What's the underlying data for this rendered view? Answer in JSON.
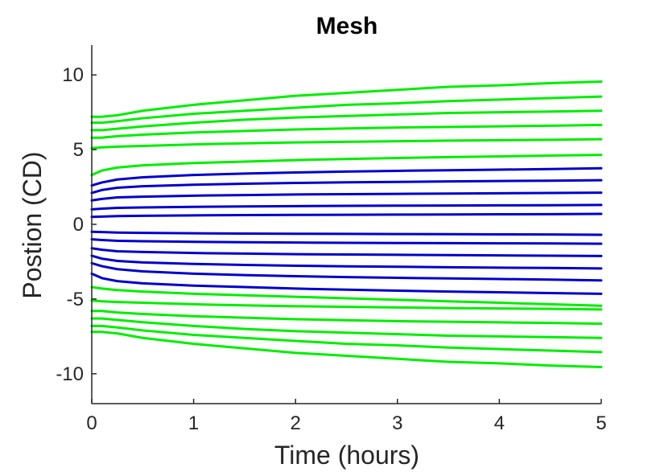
{
  "chart_data": {
    "type": "line",
    "title": "Mesh",
    "xlabel": "Time (hours)",
    "ylabel": "Postion (CD)",
    "xlim": [
      0,
      5
    ],
    "ylim": [
      -12,
      12
    ],
    "xticks": [
      0,
      1,
      2,
      3,
      4,
      5
    ],
    "xtick_labels": [
      "0",
      "1",
      "2",
      "3",
      "4",
      "5"
    ],
    "yticks": [
      -10,
      -5,
      0,
      5,
      10
    ],
    "ytick_labels": [
      "-10",
      "-5",
      "0",
      "5",
      "10"
    ],
    "grid": false,
    "colors": {
      "outer": "#00ee00",
      "inner": "#0000cc",
      "axis": "#262626"
    },
    "x": [
      0,
      0.1,
      0.25,
      0.5,
      1,
      1.5,
      2,
      2.5,
      3,
      3.5,
      4,
      4.5,
      5
    ],
    "series": [
      {
        "group": "outer",
        "values": [
          7.2,
          7.2,
          7.3,
          7.6,
          8.0,
          8.3,
          8.6,
          8.8,
          9.0,
          9.2,
          9.3,
          9.45,
          9.55
        ]
      },
      {
        "group": "outer",
        "values": [
          6.8,
          6.8,
          6.9,
          7.1,
          7.4,
          7.6,
          7.8,
          8.0,
          8.1,
          8.25,
          8.35,
          8.45,
          8.55
        ]
      },
      {
        "group": "outer",
        "values": [
          6.3,
          6.3,
          6.4,
          6.55,
          6.8,
          7.0,
          7.15,
          7.25,
          7.35,
          7.45,
          7.5,
          7.55,
          7.6
        ]
      },
      {
        "group": "outer",
        "values": [
          5.8,
          5.8,
          5.9,
          6.0,
          6.15,
          6.25,
          6.35,
          6.42,
          6.48,
          6.52,
          6.56,
          6.6,
          6.65
        ]
      },
      {
        "group": "outer",
        "values": [
          5.1,
          5.15,
          5.2,
          5.25,
          5.35,
          5.42,
          5.48,
          5.52,
          5.56,
          5.6,
          5.63,
          5.66,
          5.7
        ]
      },
      {
        "group": "outer",
        "values": [
          3.3,
          3.6,
          3.8,
          3.95,
          4.1,
          4.2,
          4.3,
          4.37,
          4.44,
          4.5,
          4.55,
          4.6,
          4.65
        ]
      },
      {
        "group": "inner",
        "values": [
          2.6,
          2.8,
          3.0,
          3.15,
          3.3,
          3.4,
          3.47,
          3.53,
          3.58,
          3.62,
          3.66,
          3.7,
          3.75
        ]
      },
      {
        "group": "inner",
        "values": [
          2.1,
          2.3,
          2.45,
          2.55,
          2.65,
          2.72,
          2.77,
          2.81,
          2.84,
          2.87,
          2.9,
          2.92,
          2.95
        ]
      },
      {
        "group": "inner",
        "values": [
          1.6,
          1.7,
          1.8,
          1.85,
          1.92,
          1.96,
          2.0,
          2.02,
          2.04,
          2.06,
          2.08,
          2.1,
          2.12
        ]
      },
      {
        "group": "inner",
        "values": [
          1.0,
          1.05,
          1.1,
          1.13,
          1.17,
          1.2,
          1.22,
          1.24,
          1.25,
          1.26,
          1.27,
          1.28,
          1.3
        ]
      },
      {
        "group": "inner",
        "values": [
          0.5,
          0.52,
          0.55,
          0.57,
          0.6,
          0.62,
          0.63,
          0.64,
          0.65,
          0.66,
          0.67,
          0.68,
          0.7
        ]
      },
      {
        "group": "inner",
        "values": [
          -0.5,
          -0.52,
          -0.55,
          -0.57,
          -0.6,
          -0.62,
          -0.63,
          -0.64,
          -0.65,
          -0.66,
          -0.67,
          -0.68,
          -0.7
        ]
      },
      {
        "group": "inner",
        "values": [
          -1.0,
          -1.05,
          -1.1,
          -1.13,
          -1.17,
          -1.2,
          -1.22,
          -1.24,
          -1.25,
          -1.26,
          -1.27,
          -1.28,
          -1.3
        ]
      },
      {
        "group": "inner",
        "values": [
          -1.6,
          -1.7,
          -1.8,
          -1.85,
          -1.92,
          -1.96,
          -2.0,
          -2.02,
          -2.04,
          -2.06,
          -2.08,
          -2.1,
          -2.12
        ]
      },
      {
        "group": "inner",
        "values": [
          -2.1,
          -2.3,
          -2.45,
          -2.55,
          -2.65,
          -2.72,
          -2.77,
          -2.81,
          -2.84,
          -2.87,
          -2.9,
          -2.92,
          -2.95
        ]
      },
      {
        "group": "inner",
        "values": [
          -2.6,
          -2.8,
          -3.0,
          -3.15,
          -3.3,
          -3.4,
          -3.47,
          -3.53,
          -3.58,
          -3.62,
          -3.66,
          -3.7,
          -3.75
        ]
      },
      {
        "group": "inner",
        "values": [
          -3.3,
          -3.6,
          -3.8,
          -3.95,
          -4.1,
          -4.2,
          -4.3,
          -4.37,
          -4.44,
          -4.5,
          -4.55,
          -4.6,
          -4.65
        ]
      },
      {
        "group": "outer",
        "values": [
          -4.2,
          -4.3,
          -4.4,
          -4.5,
          -4.65,
          -4.75,
          -4.85,
          -4.95,
          -5.05,
          -5.15,
          -5.25,
          -5.35,
          -5.45
        ]
      },
      {
        "group": "outer",
        "values": [
          -5.1,
          -5.15,
          -5.2,
          -5.25,
          -5.35,
          -5.42,
          -5.48,
          -5.52,
          -5.56,
          -5.6,
          -5.63,
          -5.66,
          -5.7
        ]
      },
      {
        "group": "outer",
        "values": [
          -5.8,
          -5.8,
          -5.9,
          -6.0,
          -6.15,
          -6.25,
          -6.35,
          -6.42,
          -6.48,
          -6.52,
          -6.56,
          -6.6,
          -6.65
        ]
      },
      {
        "group": "outer",
        "values": [
          -6.3,
          -6.3,
          -6.4,
          -6.55,
          -6.8,
          -7.0,
          -7.15,
          -7.25,
          -7.35,
          -7.45,
          -7.5,
          -7.55,
          -7.6
        ]
      },
      {
        "group": "outer",
        "values": [
          -6.8,
          -6.8,
          -6.9,
          -7.1,
          -7.4,
          -7.6,
          -7.8,
          -8.0,
          -8.1,
          -8.25,
          -8.35,
          -8.45,
          -8.55
        ]
      },
      {
        "group": "outer",
        "values": [
          -7.2,
          -7.2,
          -7.3,
          -7.6,
          -8.0,
          -8.3,
          -8.6,
          -8.8,
          -9.0,
          -9.2,
          -9.3,
          -9.45,
          -9.55
        ]
      }
    ]
  }
}
